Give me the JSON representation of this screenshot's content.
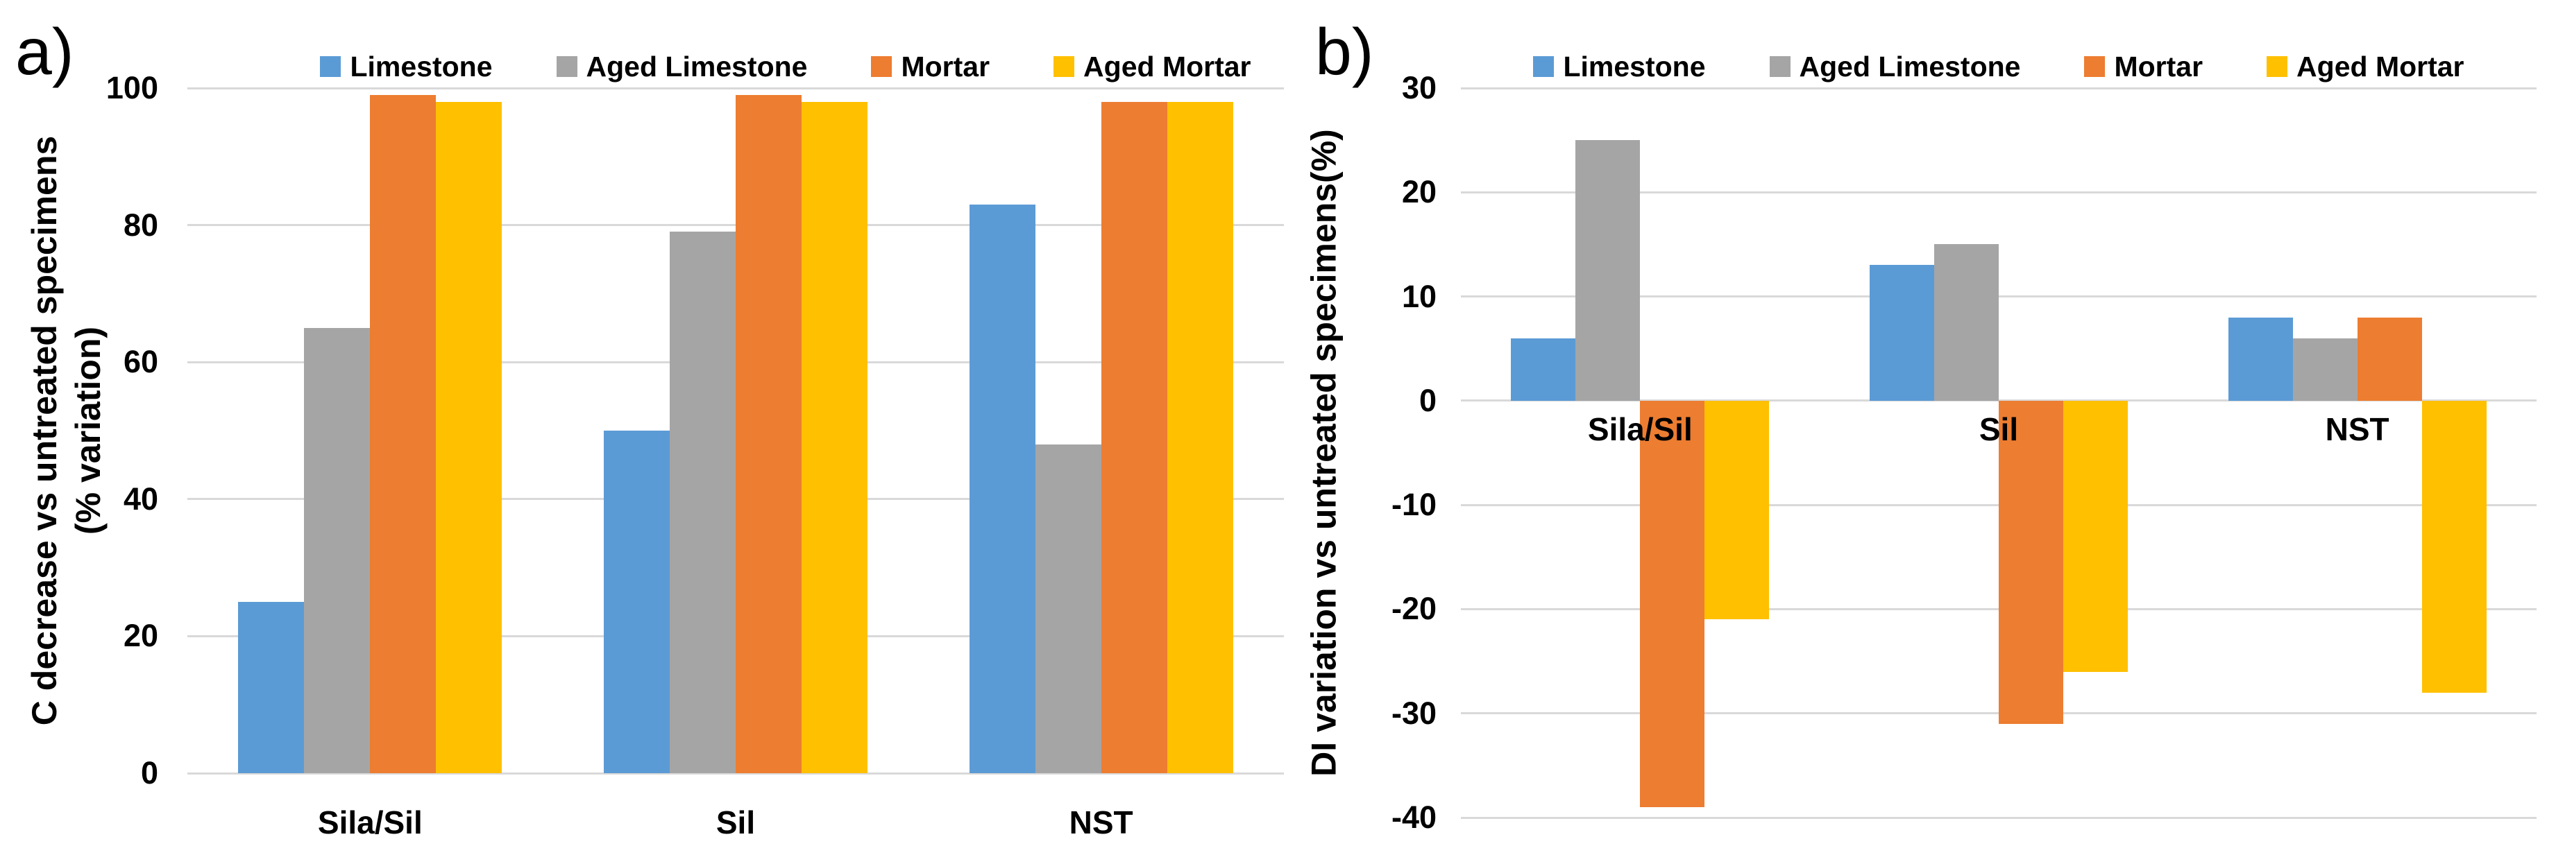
{
  "figure": {
    "background": "#ffffff",
    "panels": [
      {
        "label": "a)"
      },
      {
        "label": "b)"
      }
    ]
  },
  "styles": {
    "grid_color": "#D9D9D9",
    "text_color": "#000000",
    "series_colors": {
      "limestone": "#5B9BD5",
      "aged_limestone": "#A5A5A5",
      "mortar": "#ED7D31",
      "aged_mortar": "#FFC000"
    }
  },
  "chart_data": [
    {
      "type": "bar",
      "panel_label": "a)",
      "title": "",
      "categories": [
        "Sila/Sil",
        "Sil",
        "NST"
      ],
      "series": [
        {
          "name": "Limestone",
          "color": "#5B9BD5",
          "values": [
            25,
            50,
            83
          ]
        },
        {
          "name": "Aged Limestone",
          "color": "#A5A5A5",
          "values": [
            65,
            79,
            48
          ]
        },
        {
          "name": "Mortar",
          "color": "#ED7D31",
          "values": [
            99,
            99,
            98
          ]
        },
        {
          "name": "Aged Mortar",
          "color": "#FFC000",
          "values": [
            98,
            98,
            98
          ]
        }
      ],
      "xlabel": "",
      "ylabel": "C decrease vs untreated specimens\n(% variation)",
      "ylim": [
        0,
        100
      ],
      "yticks": [
        100,
        80,
        60,
        40,
        20,
        0
      ],
      "grid": true,
      "legend_position": "top"
    },
    {
      "type": "bar",
      "panel_label": "b)",
      "title": "",
      "categories": [
        "Sila/Sil",
        "Sil",
        "NST"
      ],
      "series": [
        {
          "name": "Limestone",
          "color": "#5B9BD5",
          "values": [
            6,
            13,
            8
          ]
        },
        {
          "name": "Aged Limestone",
          "color": "#A5A5A5",
          "values": [
            25,
            15,
            6
          ]
        },
        {
          "name": "Mortar",
          "color": "#ED7D31",
          "values": [
            -39,
            -31,
            8
          ]
        },
        {
          "name": "Aged Mortar",
          "color": "#FFC000",
          "values": [
            -21,
            -26,
            -28
          ]
        }
      ],
      "xlabel": "",
      "ylabel": "DI variation vs untreated specimens(%)",
      "ylim": [
        -40,
        30
      ],
      "yticks": [
        30,
        20,
        10,
        0,
        -10,
        -20,
        -30,
        -40
      ],
      "grid": true,
      "legend_position": "top"
    }
  ]
}
